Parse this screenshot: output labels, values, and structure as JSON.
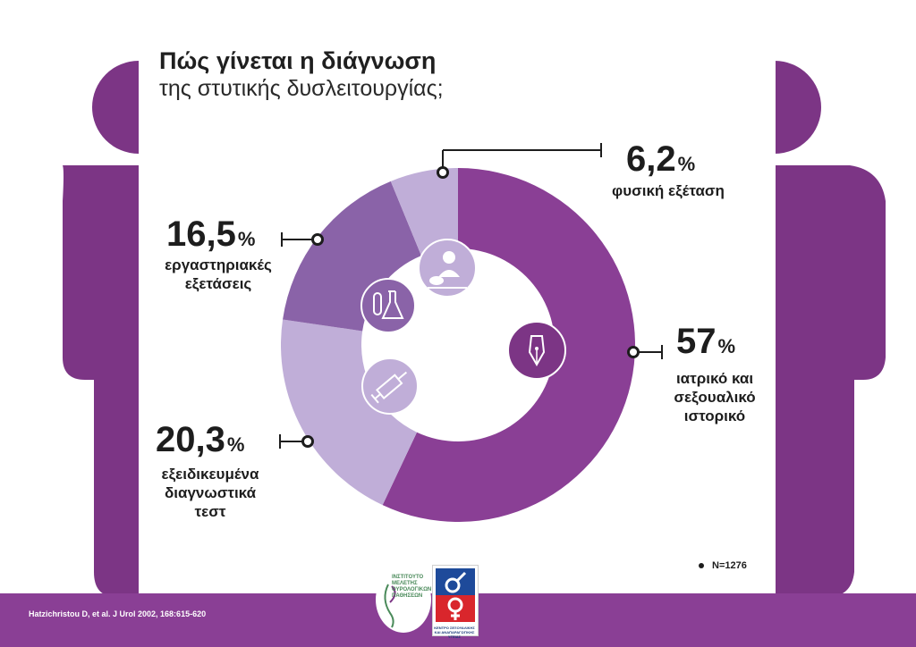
{
  "title": "Πώς γίνεται η διάγνωση",
  "subtitle": "της στυτικής δυσλειτουργίας;",
  "chart_data": {
    "type": "pie",
    "style": "donut",
    "slices": [
      {
        "value": 57.0,
        "display": "57",
        "unit": "%",
        "label_line1": "ιατρικό και",
        "label_line2": "σεξουαλικό",
        "label_line3": "ιστορικό",
        "color": "#8a3f95",
        "icon": "fountain-pen-icon"
      },
      {
        "value": 20.3,
        "display": "20,3",
        "unit": "%",
        "label_line1": "εξειδικευμένα",
        "label_line2": "διαγνωστικά",
        "label_line3": "τεστ",
        "color": "#c0aed8",
        "icon": "syringe-icon"
      },
      {
        "value": 16.5,
        "display": "16,5",
        "unit": "%",
        "label_line1": "εργαστηριακές",
        "label_line2": "εξετάσεις",
        "label_line3": "",
        "color": "#8a63a8",
        "icon": "lab-flask-icon"
      },
      {
        "value": 6.2,
        "display": "6,2",
        "unit": "%",
        "label_line1": "φυσική εξέταση",
        "label_line2": "",
        "label_line3": "",
        "color": "#c0aed8",
        "icon": "doctor-examining-icon"
      }
    ],
    "sample_size": "N=1276"
  },
  "citation": "Hatzichristou D, et al. J Urol 2002, 168:615-620",
  "logos": {
    "institute_text": "ΙΝΣΤΙΤΟΥΤΟ ΜΕΛΕΤΗΣ ΟΥΡΟΛΟΓΙΚΩΝ ΠΑΘΗΣΕΩΝ",
    "center_text": "ΚΕΝΤΡΟ ΣΕΞΟΥΑΛΙΚΗΣ ΚΑΙ ΑΝΑΠΑΡΑΓΩΓΙΚΗΣ ΥΓΕΙΑΣ"
  },
  "colors": {
    "figure": "#7c3585",
    "accent": "#8a3f95",
    "footer": "#8a3f95"
  }
}
